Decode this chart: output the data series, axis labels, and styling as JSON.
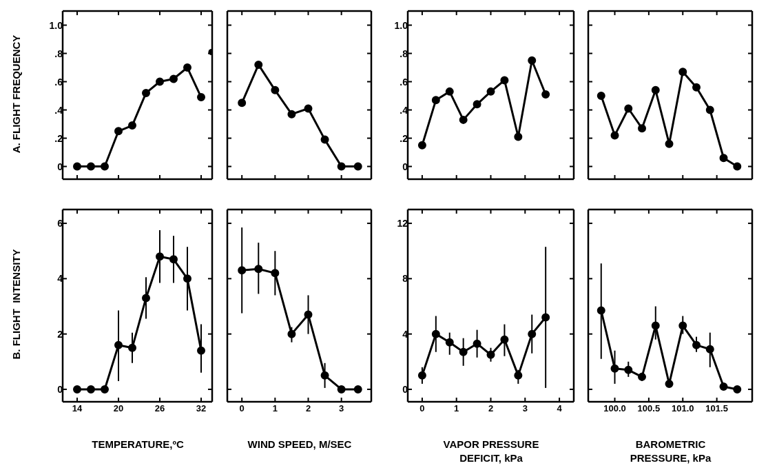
{
  "chart_data": [
    {
      "type": "line",
      "ylabel": "A. FLIGHT FREQUENCY",
      "x": [
        14,
        16,
        18,
        20,
        22,
        24,
        26,
        28,
        30,
        32
      ],
      "series": [
        {
          "color": "#000000",
          "values": [
            0,
            0,
            0,
            0.25,
            0.29,
            0.52,
            0.6,
            0.62,
            0.7,
            0.49
          ]
        },
        {
          "type": "scatter",
          "color": "#000000",
          "x": [
            33.5
          ],
          "values": [
            0.81
          ]
        }
      ],
      "xlim": [
        11.9,
        33.6
      ],
      "xticks": [
        {
          "value": 14,
          "label": null
        },
        {
          "value": 20,
          "label": null
        },
        {
          "value": 26,
          "label": null
        },
        {
          "value": 32,
          "label": null
        }
      ],
      "ylim": [
        -0.09,
        1.1
      ],
      "yticks": [
        0,
        {
          "value": 0.2,
          "label": ".2"
        },
        {
          "value": 0.4,
          "label": ".4"
        },
        {
          "value": 0.6,
          "label": ".6"
        },
        {
          "value": 0.8,
          "label": ".8"
        },
        {
          "value": 1,
          "label": "1.0"
        }
      ],
      "tick_labels": "y",
      "marker": "circle"
    },
    {
      "type": "line",
      "x": [
        0,
        0.5,
        1,
        1.5,
        2,
        2.5,
        3,
        3.5
      ],
      "series": [
        {
          "color": "#000000",
          "values": [
            0.45,
            0.72,
            0.54,
            0.37,
            0.41,
            0.19,
            0,
            0
          ]
        }
      ],
      "xlim": [
        -0.44,
        3.9
      ],
      "xticks": [
        {
          "value": 0,
          "label": null
        },
        {
          "value": 1,
          "label": null
        },
        {
          "value": 2,
          "label": null
        },
        {
          "value": 3,
          "label": null
        }
      ],
      "ylim": [
        -0.09,
        1.1
      ],
      "yticks": [
        {
          "value": 0,
          "label": null
        },
        {
          "value": 0.2,
          "label": null
        },
        {
          "value": 0.4,
          "label": null
        },
        {
          "value": 0.6,
          "label": null
        },
        {
          "value": 0.8,
          "label": null
        },
        {
          "value": 1,
          "label": null
        }
      ],
      "tick_labels": false,
      "marker": "circle"
    },
    {
      "type": "line",
      "x": [
        0,
        0.4,
        0.8,
        1.2,
        1.6,
        2,
        2.4,
        2.8,
        3.2,
        3.6
      ],
      "series": [
        {
          "color": "#000000",
          "values": [
            0.15,
            0.47,
            0.53,
            0.33,
            0.44,
            0.53,
            0.61,
            0.21,
            0.75,
            0.51
          ]
        }
      ],
      "xlim": [
        -0.42,
        4.42
      ],
      "xticks": [
        {
          "value": 0,
          "label": null
        },
        {
          "value": 1,
          "label": null
        },
        {
          "value": 2,
          "label": null
        },
        {
          "value": 3,
          "label": null
        },
        {
          "value": 4,
          "label": null
        }
      ],
      "ylim": [
        -0.09,
        1.1
      ],
      "yticks": [
        0,
        {
          "value": 0.2,
          "label": ".2"
        },
        {
          "value": 0.4,
          "label": ".4"
        },
        {
          "value": 0.6,
          "label": ".6"
        },
        {
          "value": 0.8,
          "label": ".8"
        },
        {
          "value": 1,
          "label": "1.0"
        }
      ],
      "tick_labels": "y",
      "marker": "circle"
    },
    {
      "type": "line",
      "x": [
        99.8,
        100,
        100.2,
        100.4,
        100.6,
        100.8,
        101,
        101.2,
        101.4,
        101.6,
        101.8
      ],
      "series": [
        {
          "color": "#000000",
          "values": [
            0.5,
            0.22,
            0.41,
            0.27,
            0.54,
            0.16,
            0.67,
            0.56,
            0.4,
            0.06,
            0
          ]
        }
      ],
      "xlim": [
        99.61,
        102.02
      ],
      "xticks": [
        {
          "value": 100,
          "label": null
        },
        {
          "value": 100.5,
          "label": null
        },
        {
          "value": 101,
          "label": null
        },
        {
          "value": 101.5,
          "label": null
        }
      ],
      "ylim": [
        -0.09,
        1.1
      ],
      "yticks": [
        {
          "value": 0,
          "label": null
        },
        {
          "value": 0.2,
          "label": null
        },
        {
          "value": 0.4,
          "label": null
        },
        {
          "value": 0.6,
          "label": null
        },
        {
          "value": 0.8,
          "label": null
        },
        {
          "value": 1,
          "label": null
        }
      ],
      "tick_labels": false,
      "marker": "circle"
    },
    {
      "type": "line",
      "ylabel": "B. FLIGHT  INTENSITY",
      "xlabel": "TEMPERATURE,ºC",
      "x": [
        14,
        16,
        18,
        20,
        22,
        24,
        26,
        28,
        30,
        32
      ],
      "series": [
        {
          "color": "#000000",
          "values": [
            0,
            0,
            0,
            1.6,
            1.5,
            3.3,
            4.8,
            4.7,
            4.0,
            1.4
          ],
          "errors": [
            null,
            null,
            null,
            [
              0.3,
              2.85
            ],
            [
              0.95,
              2.05
            ],
            [
              2.55,
              4.05
            ],
            [
              3.85,
              5.75
            ],
            [
              3.85,
              5.55
            ],
            [
              2.85,
              5.15
            ],
            [
              0.6,
              2.35
            ]
          ]
        }
      ],
      "xlim": [
        11.9,
        33.6
      ],
      "xticks": [
        14,
        20,
        26,
        32
      ],
      "ylim": [
        -0.45,
        6.5
      ],
      "yticks": [
        0,
        2,
        4,
        6
      ],
      "marker": "circle"
    },
    {
      "type": "line",
      "xlabel": "WIND  SPEED, M/SEC",
      "x": [
        0,
        0.5,
        1,
        1.5,
        2,
        2.5,
        3,
        3.5
      ],
      "series": [
        {
          "color": "#000000",
          "values": [
            4.3,
            4.35,
            4.2,
            2.0,
            2.7,
            0.5,
            0,
            0
          ],
          "errors": [
            [
              2.75,
              5.85
            ],
            [
              3.45,
              5.3
            ],
            [
              3.4,
              5.0
            ],
            [
              1.7,
              2.25
            ],
            [
              2.0,
              3.4
            ],
            [
              0.05,
              0.95
            ],
            null,
            null
          ]
        }
      ],
      "xlim": [
        -0.44,
        3.9
      ],
      "xticks": [
        0,
        1,
        2,
        3
      ],
      "ylim": [
        -0.45,
        6.5
      ],
      "yticks": [
        {
          "value": 0,
          "label": null
        },
        {
          "value": 2,
          "label": null
        },
        {
          "value": 4,
          "label": null
        },
        {
          "value": 6,
          "label": null
        }
      ],
      "tick_labels": "x",
      "marker": "circle"
    },
    {
      "type": "line",
      "xlabel": "VAPOR  PRESSURE DEFICIT, kPa",
      "x": [
        0,
        0.4,
        0.8,
        1.2,
        1.6,
        2,
        2.4,
        2.8,
        3.2,
        3.6
      ],
      "series": [
        {
          "color": "#000000",
          "values": [
            1.0,
            4.0,
            3.4,
            2.7,
            3.3,
            2.5,
            3.6,
            1.0,
            4.0,
            5.2
          ],
          "errors": [
            [
              0.4,
              1.6
            ],
            [
              2.7,
              5.3
            ],
            [
              2.5,
              4.1
            ],
            [
              1.7,
              3.7
            ],
            [
              2.3,
              4.3
            ],
            [
              2.0,
              3.0
            ],
            [
              2.4,
              4.7
            ],
            [
              0.4,
              1.4
            ],
            [
              2.6,
              5.4
            ],
            [
              0.1,
              10.3
            ]
          ]
        }
      ],
      "xlim": [
        -0.42,
        4.42
      ],
      "xticks": [
        0,
        1,
        2,
        3,
        4
      ],
      "ylim": [
        -0.9,
        13
      ],
      "yticks": [
        0,
        4,
        8,
        12
      ],
      "marker": "circle"
    },
    {
      "type": "line",
      "xlabel": "BAROMETRIC PRESSURE, kPa",
      "x": [
        99.8,
        100,
        100.2,
        100.4,
        100.6,
        100.8,
        101,
        101.2,
        101.4,
        101.6,
        101.8
      ],
      "series": [
        {
          "color": "#000000",
          "values": [
            5.7,
            1.5,
            1.4,
            0.9,
            4.6,
            0.4,
            4.6,
            3.2,
            2.9,
            0.2,
            0
          ],
          "errors": [
            [
              2.2,
              9.1
            ],
            [
              0.4,
              2.8
            ],
            [
              0.9,
              2.0
            ],
            [
              0.6,
              1.2
            ],
            [
              3.6,
              6.0
            ],
            [
              0.2,
              0.6
            ],
            [
              4.0,
              5.3
            ],
            [
              2.7,
              3.8
            ],
            [
              1.6,
              4.1
            ],
            null,
            null
          ]
        }
      ],
      "xlim": [
        99.61,
        102.02
      ],
      "xticks": [
        {
          "value": 100,
          "label": "100.0"
        },
        {
          "value": 100.5,
          "label": "100.5"
        },
        {
          "value": 101,
          "label": "101.0"
        },
        {
          "value": 101.5,
          "label": "101.5"
        }
      ],
      "ylim": [
        -0.9,
        13
      ],
      "yticks": [
        {
          "value": 0,
          "label": null
        },
        {
          "value": 4,
          "label": null
        },
        {
          "value": 8,
          "label": null
        },
        {
          "value": 12,
          "label": null
        }
      ],
      "tick_labels": "x",
      "marker": "circle"
    }
  ]
}
